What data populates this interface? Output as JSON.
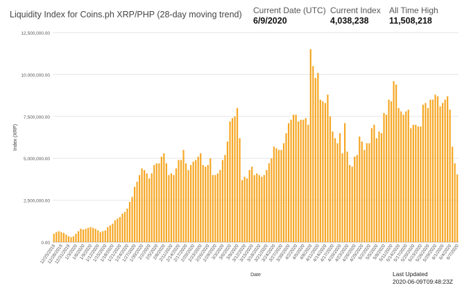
{
  "header": {
    "title": "Liquidity Index for Coins.ph XRP/PHP (28-day moving trend)",
    "stats": [
      {
        "label": "Current Date (UTC)",
        "value": "6/9/2020"
      },
      {
        "label": "Current Index",
        "value": "4,038,238"
      },
      {
        "label": "All Time High",
        "value": "11,508,218"
      }
    ]
  },
  "footer": {
    "last_updated_label": "Last Updated",
    "last_updated_value": "2020-06-09T09:48:23Z"
  },
  "colors": {
    "bar": "#f5a623",
    "grid": "#e6e6e6",
    "axis_text": "#555555"
  },
  "chart_data": {
    "type": "bar",
    "title": "Liquidity Index for Coins.ph XRP/PHP (28-day moving trend)",
    "xlabel": "Date",
    "ylabel": "Index (XRP)",
    "ylim": [
      0,
      12500000
    ],
    "yticks": [
      0,
      2500000,
      5000000,
      7500000,
      10000000,
      12500000
    ],
    "ytick_labels": [
      "0.00",
      "2,500,000.00",
      "5,000,000.00",
      "7,500,000.00",
      "10,000,000.00",
      "12,500,000.00"
    ],
    "grid": true,
    "xtick_labels": [
      "12/25/2019",
      "12/28/2019",
      "12/31/2019",
      "1/3/2020",
      "1/6/2020",
      "1/9/2020",
      "1/12/2020",
      "1/15/2020",
      "1/18/2020",
      "1/21/2020",
      "1/24/2020",
      "1/27/2020",
      "1/30/2020",
      "2/2/2020",
      "2/5/2020",
      "2/8/2020",
      "2/11/2020",
      "2/14/2020",
      "2/17/2020",
      "2/20/2020",
      "2/23/2020",
      "2/26/2020",
      "2/29/2020",
      "3/3/2020",
      "3/6/2020",
      "3/9/2020",
      "3/12/2020",
      "3/15/2020",
      "3/18/2020",
      "3/21/2020",
      "3/24/2020",
      "3/27/2020",
      "3/30/2020",
      "4/2/2020",
      "4/5/2020",
      "4/8/2020",
      "4/11/2020",
      "4/14/2020",
      "4/17/2020",
      "4/20/2020",
      "4/23/2020",
      "4/26/2020",
      "4/29/2020",
      "5/2/2020",
      "5/5/2020",
      "5/8/2020",
      "5/11/2020",
      "5/14/2020",
      "5/17/2020",
      "5/20/2020",
      "5/23/2020",
      "5/26/2020",
      "5/29/2020",
      "6/1/2020",
      "6/4/2020",
      "6/7/2020"
    ],
    "values": [
      500000,
      600000,
      650000,
      600000,
      550000,
      450000,
      350000,
      300000,
      350000,
      500000,
      650000,
      800000,
      750000,
      800000,
      850000,
      900000,
      850000,
      800000,
      700000,
      600000,
      650000,
      700000,
      900000,
      1000000,
      1100000,
      1300000,
      1400000,
      1500000,
      1700000,
      1800000,
      2000000,
      2400000,
      2700000,
      3300000,
      3600000,
      4000000,
      4400000,
      4300000,
      4100000,
      3800000,
      4100000,
      4600000,
      4700000,
      4700000,
      5100000,
      5300000,
      4700000,
      4000000,
      4100000,
      4000000,
      4400000,
      4900000,
      4900000,
      5500000,
      4700000,
      4300000,
      4600000,
      4800000,
      4900000,
      5100000,
      5300000,
      4600000,
      4500000,
      4600000,
      5000000,
      4000000,
      4000000,
      4100000,
      4300000,
      4900000,
      5200000,
      6000000,
      7200000,
      7400000,
      7500000,
      8000000,
      6200000,
      3700000,
      3900000,
      3800000,
      4300000,
      4500000,
      4000000,
      4100000,
      4000000,
      3900000,
      4000000,
      4300000,
      4700000,
      5000000,
      5700000,
      5600000,
      5500000,
      5500000,
      5900000,
      6500000,
      7100000,
      7300000,
      7600000,
      7600000,
      7200000,
      7300000,
      7300000,
      7400000,
      7000000,
      11508218,
      10500000,
      9800000,
      10100000,
      8500000,
      8400000,
      8300000,
      8800000,
      7500000,
      6600000,
      6200000,
      5900000,
      6500000,
      5300000,
      7100000,
      5400000,
      4600000,
      4500000,
      5100000,
      5200000,
      6300000,
      6000000,
      5500000,
      5900000,
      5900000,
      6800000,
      7000000,
      6200000,
      6600000,
      6500000,
      7700000,
      7600000,
      8500000,
      8400000,
      9600000,
      9400000,
      8000000,
      7800000,
      7600000,
      7800000,
      7900000,
      6800000,
      7000000,
      7000000,
      6900000,
      6900000,
      8200000,
      8300000,
      8000000,
      8500000,
      8500000,
      8800000,
      8700000,
      8100000,
      8300000,
      8500000,
      8700000,
      7900000,
      5700000,
      4700000,
      4038238
    ]
  }
}
